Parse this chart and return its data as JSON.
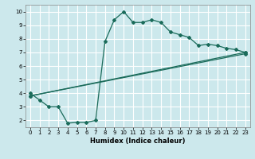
{
  "xlabel": "Humidex (Indice chaleur)",
  "xlim": [
    -0.5,
    23.5
  ],
  "ylim": [
    1.5,
    10.5
  ],
  "xticks": [
    0,
    1,
    2,
    3,
    4,
    5,
    6,
    7,
    8,
    9,
    10,
    11,
    12,
    13,
    14,
    15,
    16,
    17,
    18,
    19,
    20,
    21,
    22,
    23
  ],
  "yticks": [
    2,
    3,
    4,
    5,
    6,
    7,
    8,
    9,
    10
  ],
  "background_color": "#cce8ec",
  "grid_color": "#ffffff",
  "line_color": "#1a6b5a",
  "line1_x": [
    0,
    1,
    2,
    3,
    4,
    5,
    6,
    7,
    8,
    9,
    10,
    11,
    12,
    13,
    14,
    15,
    16,
    17,
    18,
    19,
    20,
    21,
    22,
    23
  ],
  "line1_y": [
    4.0,
    3.5,
    3.0,
    3.0,
    1.8,
    1.85,
    1.85,
    2.0,
    7.8,
    9.4,
    10.0,
    9.2,
    9.2,
    9.4,
    9.2,
    8.5,
    8.3,
    8.1,
    7.5,
    7.6,
    7.5,
    7.3,
    7.2,
    7.0
  ],
  "line2_x": [
    0,
    23
  ],
  "line2_y": [
    3.8,
    7.0
  ],
  "line3_x": [
    0,
    23
  ],
  "line3_y": [
    3.8,
    6.9
  ]
}
